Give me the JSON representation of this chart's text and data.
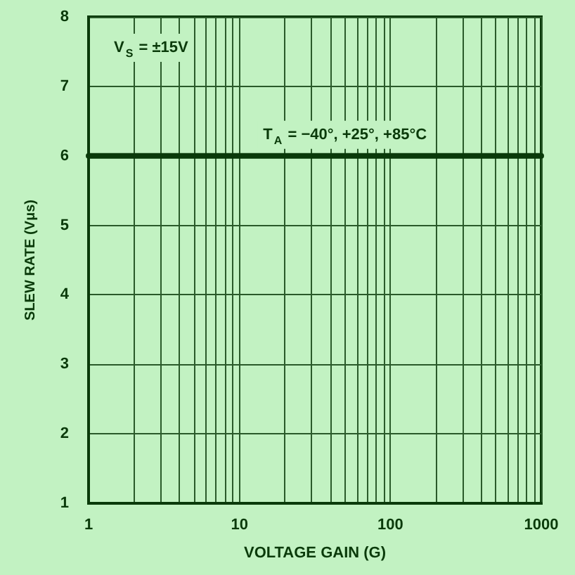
{
  "chart_data": {
    "type": "line",
    "xlabel": "VOLTAGE GAIN (G)",
    "ylabel": "SLEW RATE (Vμs)",
    "x": [
      1,
      1000
    ],
    "series": [
      {
        "color": "#0a3a0a",
        "values": [
          6,
          6
        ]
      }
    ],
    "xlim": [
      1,
      1000
    ],
    "ylim": [
      1,
      8
    ],
    "xticks": [
      1,
      {
        "value": 2,
        "label": null
      },
      {
        "value": 3,
        "label": null
      },
      {
        "value": 4,
        "label": null
      },
      {
        "value": 5,
        "label": null
      },
      {
        "value": 6,
        "label": null
      },
      {
        "value": 7,
        "label": null
      },
      {
        "value": 8,
        "label": null
      },
      {
        "value": 9,
        "label": null
      },
      10,
      {
        "value": 20,
        "label": null
      },
      {
        "value": 30,
        "label": null
      },
      {
        "value": 40,
        "label": null
      },
      {
        "value": 50,
        "label": null
      },
      {
        "value": 60,
        "label": null
      },
      {
        "value": 70,
        "label": null
      },
      {
        "value": 80,
        "label": null
      },
      {
        "value": 90,
        "label": null
      },
      100,
      {
        "value": 200,
        "label": null
      },
      {
        "value": 300,
        "label": null
      },
      {
        "value": 400,
        "label": null
      },
      {
        "value": 500,
        "label": null
      },
      {
        "value": 600,
        "label": null
      },
      {
        "value": 700,
        "label": null
      },
      {
        "value": 800,
        "label": null
      },
      {
        "value": 900,
        "label": null
      },
      1000
    ],
    "yticks": [
      1,
      2,
      3,
      4,
      5,
      6,
      7,
      8
    ],
    "log": "x",
    "grid": true,
    "marker": "none",
    "annotations": [
      "V$_{S}$ = ±15V",
      {
        "text": "T$_{A}$ = −40°, +25°, +85°C",
        "x": 50,
        "y": 6
      }
    ]
  }
}
